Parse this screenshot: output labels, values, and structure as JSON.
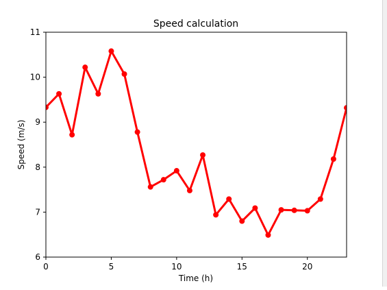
{
  "colors": {
    "series": "#ff0000",
    "axes": "#000000",
    "background": "#ffffff"
  },
  "chart_data": {
    "type": "line",
    "title": "Speed calculation",
    "xlabel": "Time (h)",
    "ylabel": "Speed (m/s)",
    "xlim": [
      0,
      23
    ],
    "ylim": [
      6,
      11
    ],
    "xticks": [
      "0",
      "5",
      "10",
      "15",
      "20"
    ],
    "yticks": [
      "6",
      "7",
      "8",
      "9",
      "10",
      "11"
    ],
    "grid": false,
    "marker": "circle",
    "series": [
      {
        "color": "#ff0000",
        "x": [
          0,
          1,
          2,
          3,
          4,
          5,
          6,
          7,
          8,
          9,
          10,
          11,
          12,
          13,
          14,
          15,
          16,
          17,
          18,
          19,
          20,
          21,
          22,
          23
        ],
        "values": [
          9.33,
          9.63,
          8.72,
          10.22,
          9.63,
          10.58,
          10.07,
          8.78,
          7.56,
          7.72,
          7.92,
          7.48,
          8.27,
          6.94,
          7.29,
          6.8,
          7.09,
          6.49,
          7.05,
          7.04,
          7.03,
          7.29,
          8.18,
          9.32
        ]
      }
    ]
  }
}
